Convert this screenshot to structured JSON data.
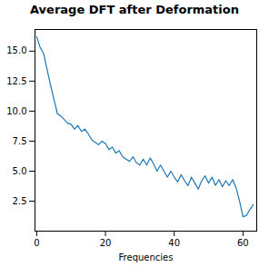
{
  "chart_data": {
    "type": "line",
    "title": "Average DFT after Deformation",
    "xlabel": "Frequencies",
    "x": [
      0,
      1,
      2,
      3,
      4,
      5,
      6,
      7,
      8,
      9,
      10,
      11,
      12,
      13,
      14,
      15,
      16,
      17,
      18,
      19,
      20,
      21,
      22,
      23,
      24,
      25,
      26,
      27,
      28,
      29,
      30,
      31,
      32,
      33,
      34,
      35,
      36,
      37,
      38,
      39,
      40,
      41,
      42,
      43,
      44,
      45,
      46,
      47,
      48,
      49,
      50,
      51,
      52,
      53,
      54,
      55,
      56,
      57,
      58,
      59,
      60,
      61,
      62,
      63
    ],
    "values": [
      16.2,
      15.3,
      14.8,
      13.5,
      12.2,
      11.0,
      9.8,
      9.6,
      9.3,
      9.0,
      8.9,
      8.5,
      8.8,
      8.3,
      8.5,
      8.1,
      7.6,
      7.4,
      7.2,
      7.5,
      7.3,
      6.8,
      7.0,
      6.5,
      6.7,
      6.2,
      6.0,
      5.8,
      6.2,
      5.7,
      5.5,
      6.0,
      5.5,
      6.1,
      5.6,
      5.0,
      5.5,
      5.0,
      4.5,
      5.0,
      4.5,
      4.1,
      4.7,
      4.2,
      3.8,
      4.5,
      4.0,
      3.5,
      4.2,
      4.6,
      4.0,
      4.5,
      3.8,
      4.3,
      3.7,
      4.2,
      3.8,
      4.3,
      3.6,
      2.5,
      1.2,
      1.3,
      1.8,
      2.2
    ],
    "color": "#1f77b4",
    "xlim": [
      -0.5,
      64
    ],
    "xticks": [
      0,
      20,
      40,
      60
    ],
    "ylim": [
      0,
      16.8
    ],
    "yticks": [
      2.5,
      5.0,
      7.5,
      10.0,
      12.5,
      15.0
    ],
    "grid": false
  }
}
